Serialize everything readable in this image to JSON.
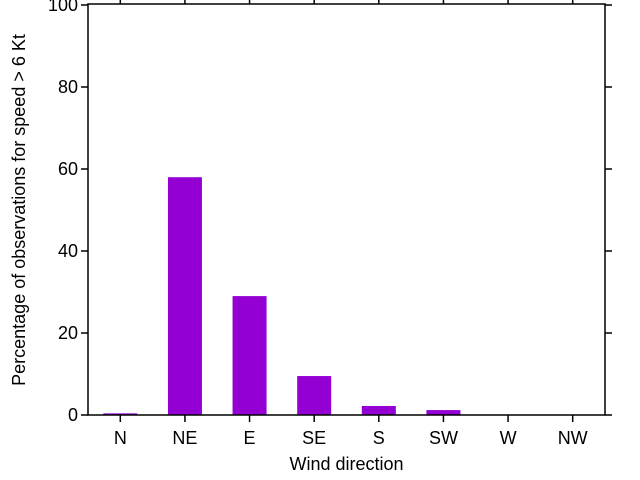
{
  "chart_data": {
    "type": "bar",
    "categories": [
      "N",
      "NE",
      "E",
      "SE",
      "S",
      "SW",
      "W",
      "NW"
    ],
    "values": [
      0.4,
      58,
      29,
      9.5,
      2.2,
      1.2,
      0,
      0
    ],
    "title": "",
    "xlabel": "Wind direction",
    "ylabel": "Percentage of observations for speed > 6 Kt",
    "ylim": [
      0,
      100
    ],
    "yticks": [
      0,
      20,
      40,
      60,
      80,
      100
    ],
    "bar_color": "#9400d3",
    "axis_color": "#000000",
    "background_color": "#ffffff",
    "grid": false,
    "legend_position": "none",
    "tick_direction": "out",
    "ticks_mirrored": true
  }
}
